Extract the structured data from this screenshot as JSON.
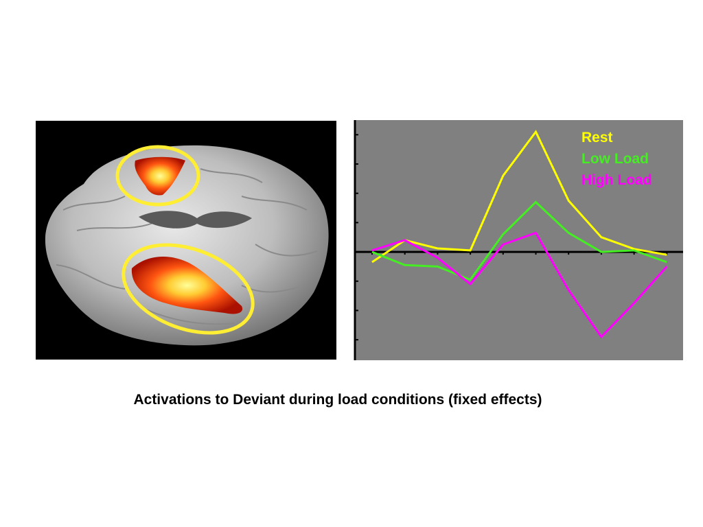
{
  "caption": "Activations to Deviant during load conditions (fixed effects)",
  "colors": {
    "background": "#ffffff",
    "brain_bg": "#000000",
    "plot_bg": "#808080",
    "axis": "#000000",
    "highlight_ellipse": "#ffee33"
  },
  "chart_data": {
    "type": "line",
    "title": "",
    "xlabel": "",
    "ylabel": "",
    "x": [
      1,
      2,
      3,
      4,
      5,
      6,
      7,
      8,
      9,
      10
    ],
    "ylim": [
      -3.7,
      4.5
    ],
    "grid": false,
    "tick_labels": false,
    "legend_position": "top-right",
    "series": [
      {
        "name": "Rest",
        "color": "#ffff00",
        "values": [
          -0.35,
          0.4,
          0.12,
          0.05,
          2.6,
          4.1,
          1.75,
          0.5,
          0.1,
          -0.1
        ]
      },
      {
        "name": "Low Load",
        "color": "#44ee22",
        "values": [
          0.0,
          -0.45,
          -0.5,
          -0.95,
          0.6,
          1.7,
          0.65,
          0.0,
          0.05,
          -0.35
        ]
      },
      {
        "name": "High Load",
        "color": "#ff00ff",
        "values": [
          0.05,
          0.4,
          -0.2,
          -1.1,
          0.25,
          0.65,
          -1.3,
          -2.9,
          -1.75,
          -0.5
        ]
      }
    ]
  }
}
